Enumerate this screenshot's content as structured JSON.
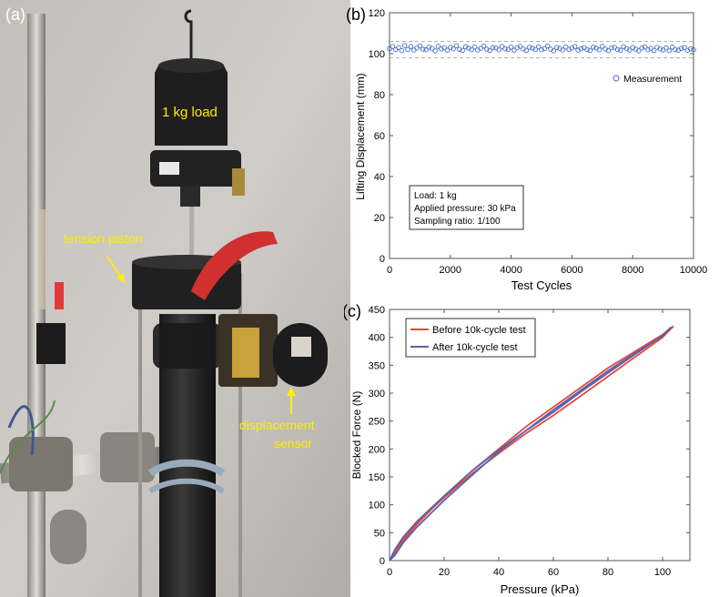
{
  "panel_a": {
    "letter": "(a)",
    "labels": {
      "load": "1 kg load",
      "piston": "tension piston",
      "sensor_line1": "displacement",
      "sensor_line2": "sensor"
    },
    "colors": {
      "annotation": "#ffee00"
    }
  },
  "chart_data": [
    {
      "panel": "(b)",
      "type": "scatter",
      "xlabel": "Test Cycles",
      "ylabel": "Lifting Displacement (mm)",
      "xlim": [
        0,
        10000
      ],
      "ylim": [
        0,
        120
      ],
      "xticks": [
        0,
        2000,
        4000,
        6000,
        8000,
        10000
      ],
      "yticks": [
        0,
        20,
        40,
        60,
        80,
        100,
        120
      ],
      "grid": false,
      "legend": "right",
      "series": [
        {
          "name": "Measurement",
          "color": "#4a6fd0",
          "marker": "circle",
          "x": [
            0,
            100,
            200,
            300,
            400,
            500,
            600,
            700,
            800,
            900,
            1000,
            1100,
            1200,
            1300,
            1400,
            1500,
            1600,
            1700,
            1800,
            1900,
            2000,
            2100,
            2200,
            2300,
            2400,
            2500,
            2600,
            2700,
            2800,
            2900,
            3000,
            3100,
            3200,
            3300,
            3400,
            3500,
            3600,
            3700,
            3800,
            3900,
            4000,
            4100,
            4200,
            4300,
            4400,
            4500,
            4600,
            4700,
            4800,
            4900,
            5000,
            5100,
            5200,
            5300,
            5400,
            5500,
            5600,
            5700,
            5800,
            5900,
            6000,
            6100,
            6200,
            6300,
            6400,
            6500,
            6600,
            6700,
            6800,
            6900,
            7000,
            7100,
            7200,
            7300,
            7400,
            7500,
            7600,
            7700,
            7800,
            7900,
            8000,
            8100,
            8200,
            8300,
            8400,
            8500,
            8600,
            8700,
            8800,
            8900,
            9000,
            9100,
            9200,
            9300,
            9400,
            9500,
            9600,
            9700,
            9800,
            9900,
            10000
          ],
          "y": [
            102.5,
            103.5,
            102.0,
            103.0,
            101.5,
            104.0,
            102.0,
            103.5,
            101.8,
            102.8,
            103.8,
            102.2,
            101.9,
            103.2,
            102.6,
            101.4,
            103.6,
            102.3,
            102.9,
            101.7,
            103.1,
            102.4,
            103.9,
            102.1,
            101.6,
            103.4,
            102.7,
            102.0,
            103.3,
            101.8,
            102.6,
            103.7,
            102.2,
            101.5,
            103.0,
            102.8,
            101.9,
            103.5,
            102.4,
            102.1,
            103.2,
            101.7,
            102.9,
            103.6,
            102.3,
            101.6,
            103.1,
            102.7,
            102.0,
            103.4,
            101.9,
            102.5,
            103.8,
            102.2,
            101.4,
            103.0,
            102.6,
            101.8,
            103.3,
            102.1,
            102.8,
            103.5,
            101.7,
            102.4,
            103.0,
            102.0,
            101.6,
            103.2,
            102.7,
            101.9,
            103.6,
            102.3,
            101.5,
            102.9,
            103.1,
            102.0,
            101.7,
            103.4,
            102.5,
            101.8,
            103.0,
            102.2,
            101.4,
            102.8,
            103.3,
            101.9,
            102.6,
            101.6,
            103.1,
            102.3,
            101.8,
            102.9,
            101.5,
            103.2,
            102.0,
            101.7,
            102.6,
            103.0,
            101.6,
            102.4,
            102.0
          ],
          "band": [
            98,
            106
          ]
        }
      ],
      "annotation": [
        "Load: 1 kg",
        "Applied pressure: 30 kPa",
        "Sampling ratio: 1/100"
      ]
    },
    {
      "panel": "(c)",
      "type": "line",
      "xlabel": "Pressure (kPa)",
      "ylabel": "Blocked Force (N)",
      "xlim": [
        0,
        110
      ],
      "ylim": [
        0,
        450
      ],
      "xticks": [
        0,
        20,
        40,
        60,
        80,
        100
      ],
      "yticks": [
        0,
        50,
        100,
        150,
        200,
        250,
        300,
        350,
        400,
        450
      ],
      "grid": false,
      "legend": "top-left",
      "series": [
        {
          "name": "Before 10k-cycle test",
          "color": "#e8453c",
          "x": [
            0,
            2,
            5,
            10,
            20,
            30,
            40,
            50,
            60,
            70,
            80,
            90,
            100,
            104,
            100,
            90,
            80,
            70,
            60,
            50,
            40,
            30,
            20,
            10,
            5,
            2,
            0
          ],
          "y": [
            0,
            12,
            35,
            65,
            115,
            160,
            200,
            240,
            275,
            310,
            345,
            375,
            405,
            420,
            400,
            365,
            330,
            295,
            260,
            228,
            192,
            155,
            113,
            68,
            40,
            18,
            0
          ]
        },
        {
          "name": "After 10k-cycle test",
          "color": "#5a62a8",
          "x": [
            0,
            2,
            5,
            10,
            20,
            30,
            40,
            50,
            60,
            70,
            80,
            90,
            100,
            103,
            100,
            90,
            80,
            70,
            60,
            50,
            40,
            30,
            20,
            10,
            5,
            2,
            0
          ],
          "y": [
            0,
            10,
            32,
            60,
            108,
            152,
            195,
            233,
            270,
            305,
            340,
            372,
            402,
            418,
            403,
            370,
            336,
            302,
            266,
            233,
            198,
            160,
            116,
            70,
            42,
            20,
            0
          ]
        }
      ]
    }
  ]
}
